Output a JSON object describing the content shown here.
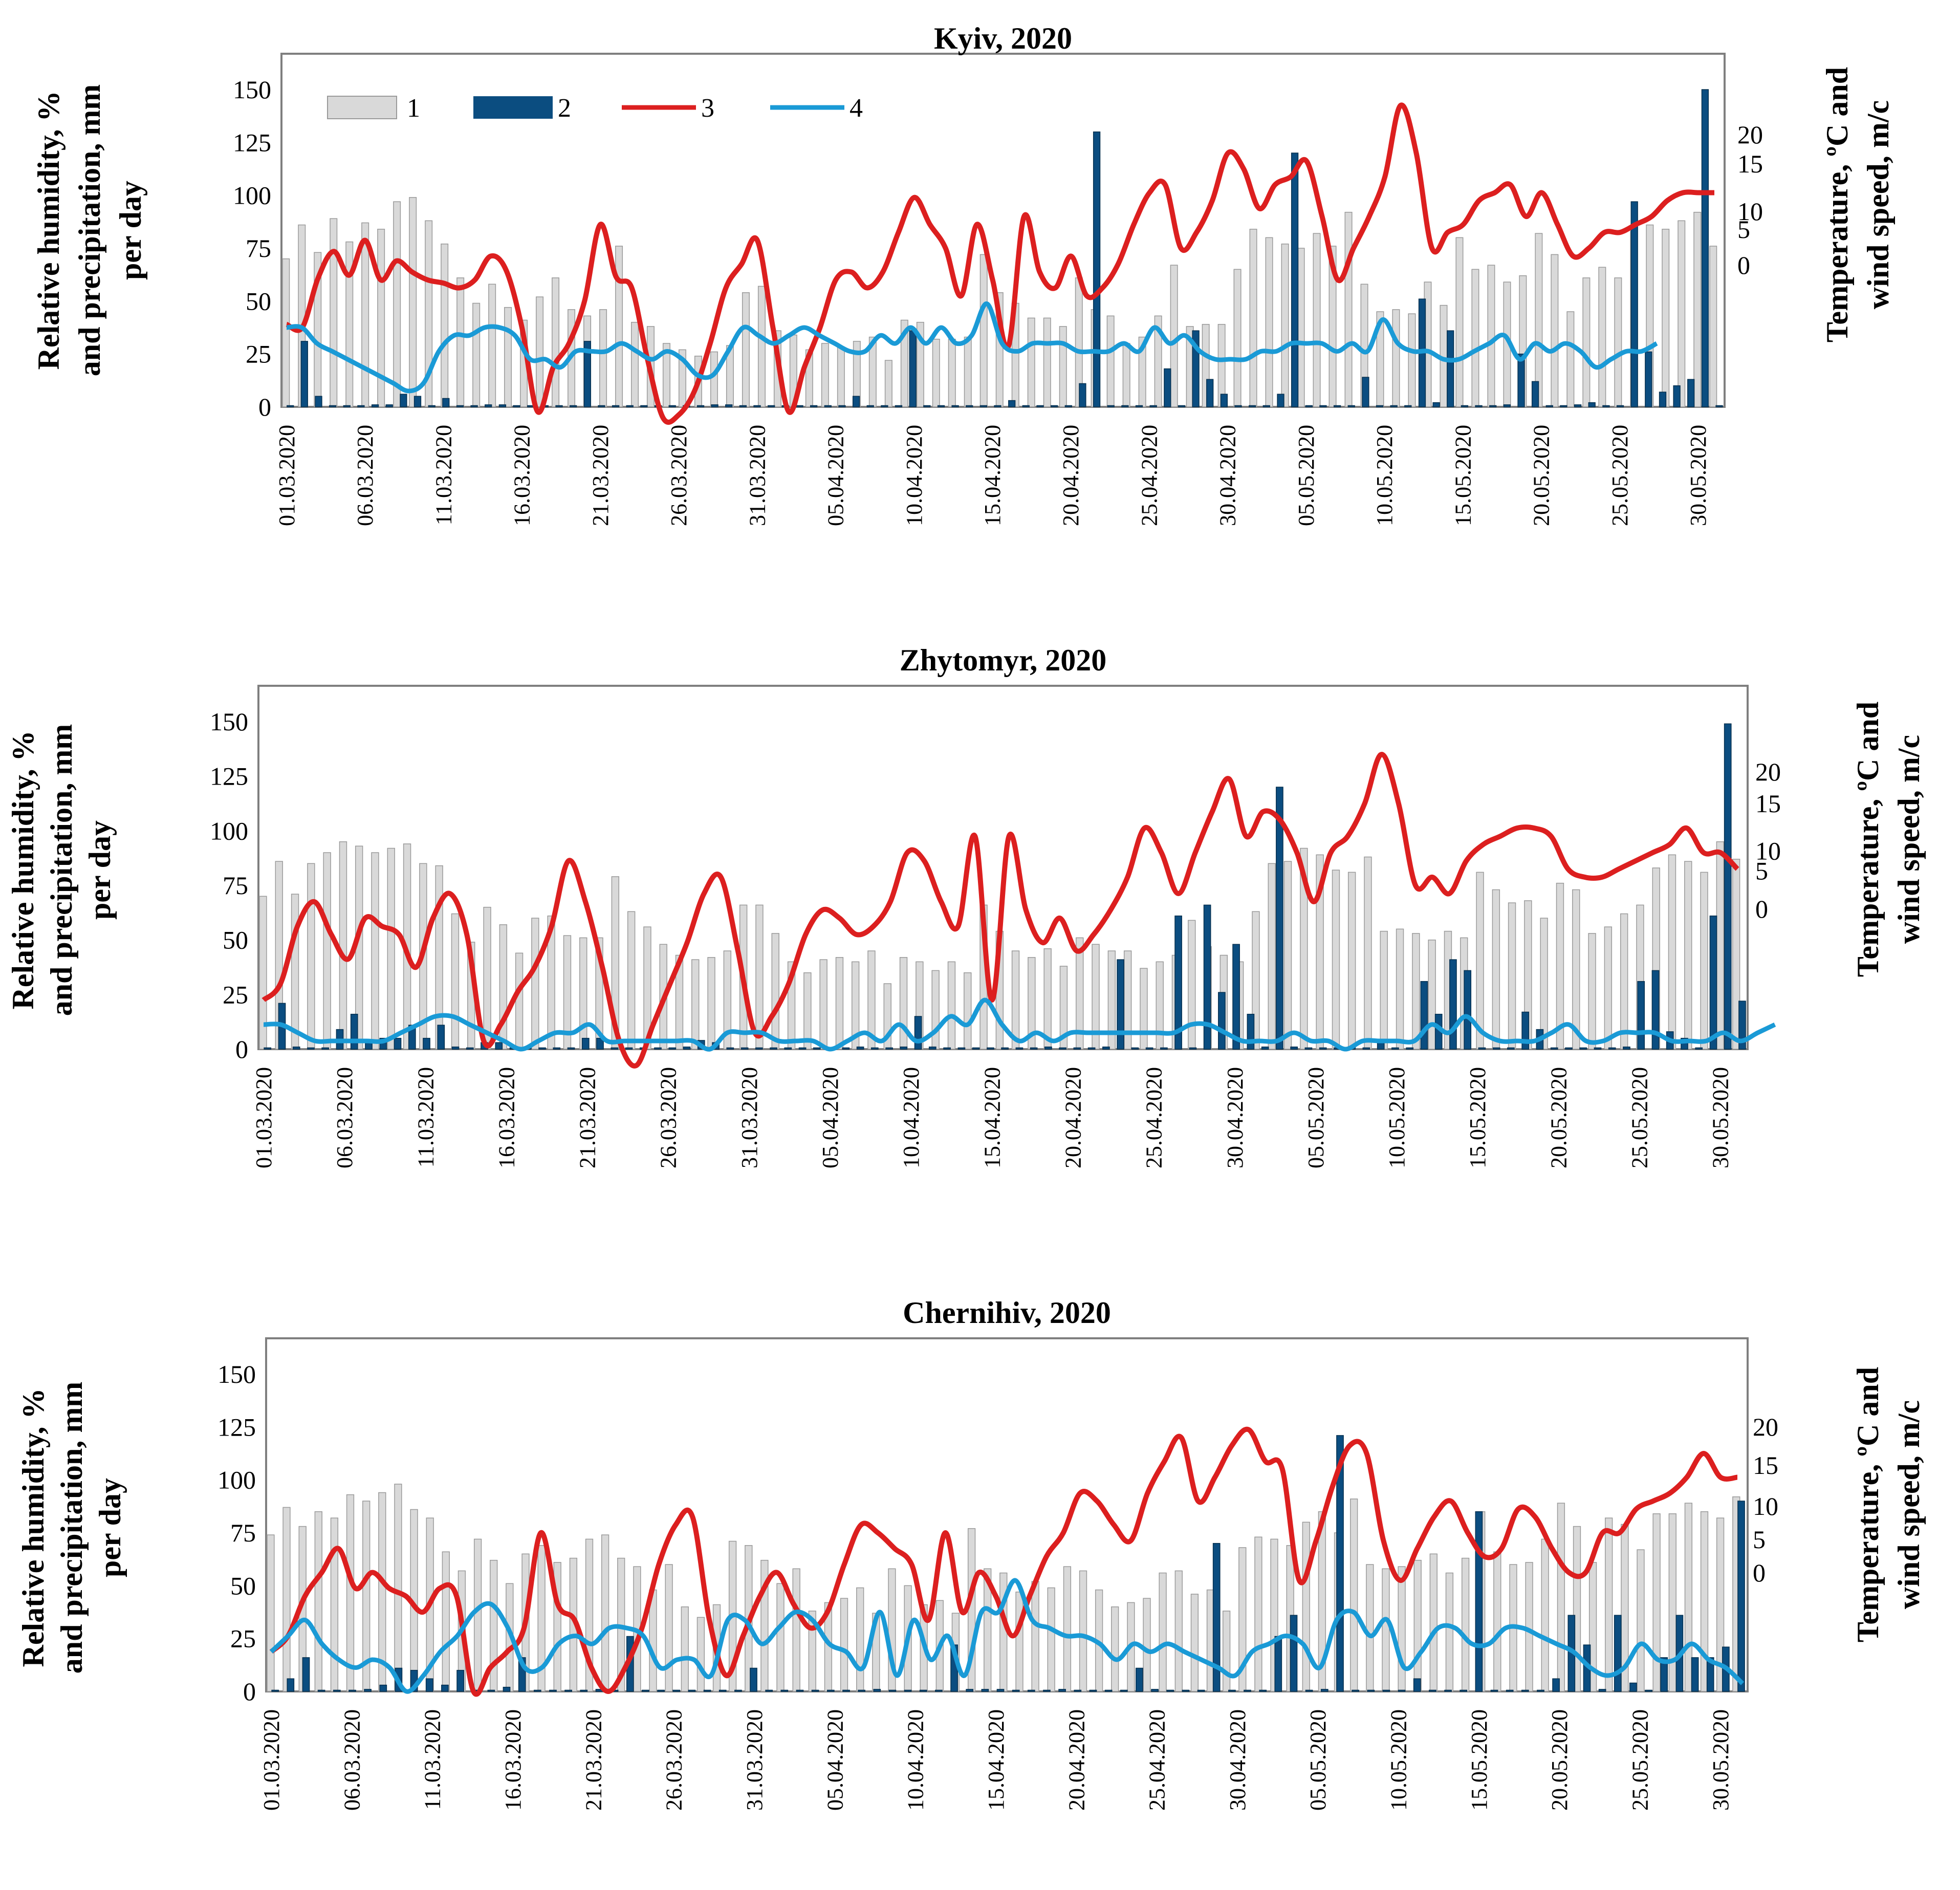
{
  "x_ticks": [
    "01.03.2020",
    "06.03.2020",
    "11.03.2020",
    "16.03.2020",
    "21.03.2020",
    "26.03.2020",
    "31.03.2020",
    "05.04.2020",
    "10.04.2020",
    "15.04.2020",
    "20.04.2020",
    "25.04.2020",
    "30.04.2020",
    "05.05.2020",
    "10.05.2020",
    "15.05.2020",
    "20.05.2020",
    "25.05.2020",
    "30.05.2020"
  ],
  "left_axis_lines": [
    "Relative humidity, %",
    "and  precipitation, mm",
    "per day"
  ],
  "right_axis_lines": [
    "Temperature, ºC and",
    "wind speed, m/c"
  ],
  "legend": [
    "1",
    "2",
    "3",
    "4"
  ],
  "colors": {
    "humidity": "#d9d9d9",
    "precip": "#0b4d80",
    "temperature": "#dc1f1f",
    "wind": "#1a9ad6"
  },
  "chart_data": [
    {
      "type": "bar+line",
      "title": "Kyiv, 2020",
      "ylim_left": [
        0,
        150
      ],
      "yticks_left": [
        0,
        25,
        50,
        75,
        100,
        125,
        150
      ],
      "ylim_right": [
        0,
        20
      ],
      "yticks_right": [
        0,
        5,
        10,
        15,
        20
      ],
      "humidity": [
        70,
        86,
        73,
        89,
        78,
        87,
        84,
        97,
        99,
        88,
        77,
        61,
        49,
        58,
        47,
        41,
        52,
        61,
        46,
        43,
        46,
        76,
        40,
        38,
        30,
        27,
        24,
        26,
        29,
        54,
        57,
        36,
        34,
        27,
        30,
        28,
        31,
        33,
        22,
        41,
        40,
        32,
        32,
        33,
        72,
        54,
        49,
        42,
        42,
        38,
        61,
        46,
        43,
        30,
        33,
        43,
        67,
        38,
        39,
        39,
        65,
        84,
        80,
        77,
        75,
        82,
        76,
        92,
        58,
        45,
        46,
        44,
        59,
        48,
        80,
        65,
        67,
        59,
        62,
        82,
        72,
        45,
        61,
        66,
        61,
        83,
        86,
        84,
        88,
        92,
        76
      ],
      "precip": [
        0,
        31,
        5,
        0,
        0,
        0,
        1,
        1,
        6,
        5,
        0,
        4,
        0,
        0,
        1,
        1,
        0,
        0,
        0,
        0,
        0,
        31,
        0,
        0,
        0,
        0,
        0,
        0,
        0,
        0,
        1,
        1,
        0,
        0,
        0,
        0,
        0,
        0,
        0,
        0,
        5,
        0,
        0,
        0,
        36,
        0,
        0,
        0,
        0,
        0,
        0,
        3,
        0,
        0,
        0,
        0,
        11,
        130,
        0,
        0,
        0,
        0,
        18,
        0,
        36,
        13,
        6,
        0,
        0,
        0,
        6,
        120,
        0,
        0,
        0,
        0,
        14,
        0,
        0,
        0,
        51,
        2,
        36,
        0,
        0,
        0,
        1,
        25,
        12,
        0,
        0,
        1,
        2,
        0,
        0,
        97,
        26,
        7,
        10,
        13,
        150,
        0
      ],
      "temperature": [
        5.2,
        5.0,
        8.1,
        9.8,
        8.3,
        10.5,
        8.0,
        9.2,
        8.5,
        8.0,
        7.8,
        7.5,
        8.0,
        9.5,
        8.6,
        5.0,
        -0.3,
        2.5,
        4.0,
        6.7,
        11.5,
        8.2,
        7.5,
        3.0,
        -0.7,
        -0.5,
        1.0,
        4.0,
        7.5,
        9.0,
        10.5,
        5.0,
        -0.3,
        2.5,
        5.0,
        8.0,
        8.5,
        7.5,
        8.5,
        11.0,
        13.2,
        11.5,
        10.0,
        7.0,
        11.5,
        8.0,
        3.8,
        12.0,
        8.5,
        7.5,
        9.5,
        7.0,
        7.5,
        9.0,
        11.5,
        13.5,
        14.0,
        10.0,
        11.0,
        13.0,
        16.0,
        15.0,
        12.5,
        14.0,
        14.5,
        15.5,
        12.0,
        8.0,
        10.0,
        12.0,
        14.5,
        19.0,
        16.0,
        10.0,
        11.0,
        11.5,
        13.0,
        13.5,
        14.0,
        12.0,
        13.5,
        11.5,
        9.5,
        10.0,
        11.0,
        11.0,
        11.5,
        12.0,
        13.0,
        13.5,
        13.5,
        13.5
      ],
      "wind": [
        5.0,
        5.0,
        4.0,
        3.5,
        3.0,
        2.5,
        2.0,
        1.5,
        1.0,
        1.5,
        3.5,
        4.5,
        4.5,
        5.0,
        5.0,
        4.5,
        3.0,
        3.0,
        2.5,
        3.5,
        3.5,
        3.5,
        4.0,
        3.5,
        3.0,
        3.5,
        3.0,
        2.0,
        2.0,
        3.5,
        5.0,
        4.5,
        4.0,
        4.5,
        5.0,
        4.5,
        4.0,
        3.5,
        3.5,
        4.5,
        4.0,
        5.0,
        4.0,
        5.0,
        4.0,
        4.5,
        6.5,
        4.0,
        3.5,
        4.0,
        4.0,
        4.0,
        3.5,
        3.5,
        3.5,
        4.0,
        3.5,
        5.0,
        4.0,
        4.5,
        3.5,
        3.0,
        3.0,
        3.0,
        3.5,
        3.5,
        4.0,
        4.0,
        4.0,
        3.5,
        4.0,
        3.5,
        5.5,
        4.0,
        3.5,
        3.5,
        3.0,
        3.0,
        3.5,
        4.0,
        4.5,
        3.0,
        4.0,
        3.5,
        4.0,
        3.5,
        2.5,
        3.0,
        3.5,
        3.5,
        4.0
      ],
      "wind_span": [
        0,
        88
      ]
    },
    {
      "type": "bar+line",
      "title": "Zhytomyr, 2020",
      "ylim_left": [
        0,
        150
      ],
      "yticks_left": [
        0,
        25,
        50,
        75,
        100,
        125,
        150
      ],
      "ylim_right": [
        0,
        20
      ],
      "yticks_right": [
        0,
        5,
        10,
        15,
        20
      ],
      "humidity": [
        70,
        86,
        71,
        85,
        90,
        95,
        93,
        90,
        92,
        94,
        85,
        84,
        62,
        49,
        65,
        57,
        44,
        60,
        61,
        52,
        51,
        51,
        79,
        63,
        56,
        48,
        43,
        41,
        42,
        45,
        66,
        66,
        53,
        40,
        35,
        41,
        42,
        40,
        45,
        30,
        42,
        40,
        36,
        40,
        35,
        66,
        54,
        45,
        42,
        46,
        38,
        51,
        48,
        45,
        45,
        37,
        40,
        43,
        59,
        47,
        43,
        40,
        63,
        85,
        86,
        92,
        89,
        82,
        81,
        88,
        54,
        55,
        53,
        50,
        54,
        51,
        81,
        73,
        67,
        68,
        60,
        76,
        73,
        53,
        56,
        62,
        66,
        83,
        89,
        86,
        81,
        95,
        87
      ],
      "precip": [
        0,
        21,
        1,
        0,
        0,
        9,
        16,
        4,
        5,
        5,
        11,
        5,
        11,
        1,
        0,
        3,
        3,
        0,
        1,
        0,
        0,
        0,
        5,
        5,
        0,
        0,
        0,
        0,
        0,
        1,
        4,
        3,
        0,
        0,
        0,
        0,
        0,
        0,
        0,
        0,
        0,
        1,
        0,
        0,
        1,
        15,
        1,
        0,
        0,
        0,
        0,
        0,
        0,
        0,
        1,
        0,
        0,
        0,
        1,
        41,
        0,
        0,
        0,
        61,
        0,
        66,
        26,
        48,
        16,
        1,
        120,
        1,
        0,
        0,
        0,
        0,
        0,
        3,
        0,
        0,
        31,
        16,
        41,
        36,
        0,
        0,
        0,
        17,
        9,
        0,
        0,
        0,
        0,
        0,
        1,
        31,
        36,
        8,
        5,
        0,
        61,
        149,
        22
      ],
      "temperature": [
        3.0,
        4.0,
        7.5,
        9.0,
        7.0,
        5.5,
        8.0,
        7.5,
        7.0,
        5.0,
        8.0,
        9.5,
        7.0,
        0.5,
        1.5,
        3.5,
        5.0,
        7.5,
        11.5,
        9.0,
        5.0,
        0.5,
        -1.0,
        1.5,
        4.0,
        6.5,
        9.5,
        10.5,
        6.0,
        1.0,
        2.0,
        4.0,
        7.0,
        8.5,
        8.0,
        7.0,
        7.5,
        9.0,
        12.0,
        11.5,
        9.0,
        7.5,
        13.0,
        3.0,
        13.0,
        8.5,
        6.5,
        8.0,
        6.0,
        7.0,
        8.5,
        10.5,
        13.5,
        12.0,
        9.5,
        12.0,
        14.5,
        16.5,
        13.0,
        14.5,
        14.0,
        12.0,
        9.0,
        12.0,
        13.0,
        15.0,
        18.0,
        15.0,
        10.0,
        10.5,
        9.5,
        11.5,
        12.5,
        13.0,
        13.5,
        13.5,
        13.0,
        11.0,
        10.5,
        10.5,
        11.0,
        11.5,
        12.0,
        12.5,
        13.5,
        12.0,
        12.0,
        11.0
      ],
      "wind": [
        1.5,
        1.5,
        1.0,
        0.5,
        0.5,
        0.5,
        0.5,
        0.5,
        1.0,
        1.5,
        2.0,
        2.0,
        1.5,
        1.0,
        0.5,
        0.0,
        0.5,
        1.0,
        1.0,
        1.5,
        0.5,
        0.5,
        0.5,
        0.5,
        0.5,
        0.5,
        0.0,
        1.0,
        1.0,
        1.0,
        0.5,
        0.5,
        0.5,
        0.0,
        0.5,
        1.0,
        0.5,
        1.5,
        0.5,
        1.0,
        2.0,
        1.5,
        3.0,
        1.5,
        0.5,
        1.0,
        0.5,
        1.0,
        1.0,
        1.0,
        1.0,
        1.0,
        1.0,
        1.0,
        1.5,
        1.5,
        1.0,
        0.5,
        0.5,
        0.5,
        1.0,
        0.5,
        0.5,
        0.0,
        0.5,
        0.5,
        0.5,
        0.5,
        1.5,
        1.0,
        2.0,
        1.0,
        0.5,
        0.5,
        0.5,
        1.0,
        1.5,
        0.5,
        0.5,
        1.0,
        1.0,
        1.0,
        0.5,
        0.5,
        0.5,
        1.0,
        0.5,
        1.0,
        1.5
      ],
      "wind_span": [
        0,
        94
      ]
    },
    {
      "type": "bar+line",
      "title": "Chernihiv, 2020",
      "ylim_left": [
        0,
        150
      ],
      "yticks_left": [
        0,
        25,
        50,
        75,
        100,
        125,
        150
      ],
      "ylim_right": [
        0,
        20
      ],
      "yticks_right": [
        0,
        5,
        10,
        15,
        20
      ],
      "humidity": [
        74,
        87,
        78,
        85,
        82,
        93,
        90,
        94,
        98,
        86,
        82,
        66,
        57,
        72,
        62,
        51,
        65,
        69,
        61,
        63,
        72,
        74,
        63,
        59,
        48,
        60,
        40,
        35,
        41,
        71,
        69,
        62,
        51,
        58,
        38,
        42,
        44,
        49,
        37,
        58,
        50,
        41,
        43,
        37,
        77,
        58,
        56,
        47,
        52,
        49,
        59,
        57,
        48,
        40,
        42,
        44,
        56,
        57,
        46,
        48,
        38,
        68,
        73,
        72,
        69,
        80,
        85,
        75,
        91,
        60,
        58,
        59,
        62,
        65,
        56,
        63,
        85,
        66,
        60,
        61,
        72,
        89,
        78,
        61,
        82,
        79,
        67,
        84,
        84,
        89,
        85,
        82,
        92
      ],
      "precip": [
        0,
        6,
        16,
        0,
        0,
        0,
        1,
        3,
        11,
        10,
        6,
        3,
        10,
        0,
        0,
        2,
        16,
        0,
        0,
        0,
        0,
        1,
        0,
        26,
        0,
        0,
        0,
        0,
        0,
        0,
        0,
        11,
        0,
        0,
        0,
        0,
        0,
        0,
        0,
        1,
        0,
        0,
        0,
        0,
        22,
        1,
        1,
        1,
        0,
        0,
        0,
        1,
        0,
        0,
        0,
        0,
        11,
        1,
        0,
        0,
        0,
        70,
        0,
        0,
        0,
        26,
        36,
        0,
        1,
        121,
        0,
        0,
        0,
        0,
        6,
        0,
        0,
        0,
        85,
        0,
        0,
        0,
        0,
        6,
        36,
        22,
        1,
        36,
        4,
        0,
        16,
        36,
        16,
        16,
        21,
        90
      ],
      "temperature": [
        2.5,
        3.5,
        6.0,
        7.5,
        9.0,
        6.5,
        7.5,
        6.5,
        6.0,
        5.0,
        6.5,
        6.0,
        0.0,
        1.5,
        2.5,
        4.0,
        10.0,
        5.5,
        4.5,
        1.5,
        0.0,
        1.5,
        4.0,
        8.0,
        10.5,
        11.0,
        4.5,
        1.0,
        3.5,
        6.0,
        7.5,
        5.5,
        4.0,
        5.0,
        8.0,
        10.5,
        10.0,
        9.0,
        8.0,
        4.5,
        10.0,
        5.0,
        7.5,
        6.0,
        3.5,
        6.0,
        8.5,
        10.0,
        12.5,
        12.0,
        10.5,
        9.5,
        12.5,
        14.5,
        16.0,
        12.0,
        13.5,
        15.5,
        16.5,
        14.5,
        14.0,
        7.0,
        9.5,
        13.0,
        15.5,
        15.0,
        9.5,
        7.0,
        9.0,
        11.0,
        12.0,
        10.0,
        8.5,
        9.0,
        11.5,
        11.0,
        9.0,
        7.5,
        7.5,
        10.0,
        10.0,
        11.5,
        12.0,
        12.5,
        13.5,
        15.0,
        13.5,
        13.5
      ],
      "wind": [
        2.5,
        3.5,
        4.5,
        3.0,
        2.0,
        1.5,
        2.0,
        1.5,
        0.0,
        1.0,
        2.5,
        3.5,
        5.0,
        5.5,
        4.0,
        1.5,
        1.5,
        3.0,
        3.5,
        3.0,
        4.0,
        4.0,
        3.5,
        1.5,
        2.0,
        2.0,
        1.0,
        4.5,
        4.5,
        3.0,
        4.0,
        5.0,
        4.5,
        3.0,
        2.5,
        1.5,
        5.0,
        1.0,
        4.5,
        2.0,
        3.5,
        1.0,
        5.0,
        5.0,
        7.0,
        4.5,
        4.0,
        3.5,
        3.5,
        3.0,
        2.0,
        3.0,
        2.5,
        3.0,
        2.5,
        2.0,
        1.5,
        1.0,
        2.5,
        3.0,
        3.5,
        3.0,
        1.5,
        4.5,
        5.0,
        3.5,
        4.5,
        1.5,
        2.5,
        4.0,
        4.0,
        3.0,
        3.0,
        4.0,
        4.0,
        3.5,
        3.0,
        2.5,
        1.5,
        1.0,
        1.5,
        3.0,
        2.0,
        2.0,
        3.0,
        2.0,
        1.5,
        0.5
      ],
      "wind_span": [
        0,
        92
      ]
    }
  ]
}
